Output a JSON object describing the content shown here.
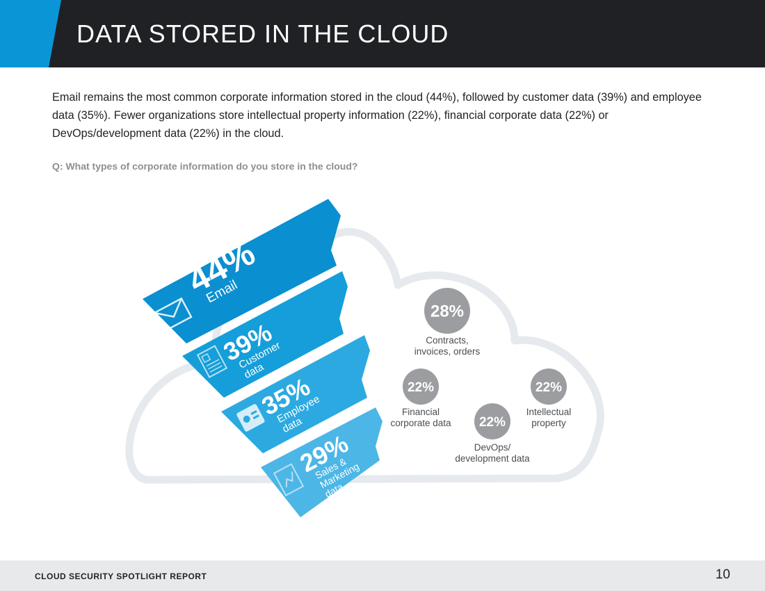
{
  "header": {
    "title": "DATA STORED IN THE CLOUD",
    "accent_color": "#0a96d6",
    "bar_color": "#1f2124"
  },
  "intro": "Email remains the most common corporate information stored in the cloud (44%), followed by customer data (39%) and employee data (35%).  Fewer organizations store intellectual property information (22%), financial corporate data (22%) or DevOps/development data (22%) in the cloud.",
  "question": "Q: What types of corporate information do you store in the cloud?",
  "footer": {
    "label": "CLOUD SECURITY SPOTLIGHT REPORT",
    "page_number": "10"
  },
  "chart_data": {
    "type": "bar",
    "title": "",
    "ribbons": [
      {
        "value_label": "44%",
        "value": 44,
        "label_lines": [
          "Email"
        ],
        "icon": "envelope-icon",
        "color": "#0a8fd0"
      },
      {
        "value_label": "39%",
        "value": 39,
        "label_lines": [
          "Customer",
          "data"
        ],
        "icon": "document-icon",
        "color": "#159ed9"
      },
      {
        "value_label": "35%",
        "value": 35,
        "label_lines": [
          "Employee",
          "data"
        ],
        "icon": "id-badge-icon",
        "color": "#2ca9e1"
      },
      {
        "value_label": "29%",
        "value": 29,
        "label_lines": [
          "Sales &",
          "Marketing",
          "data"
        ],
        "icon": "chart-document-icon",
        "color": "#4cb6e6"
      }
    ],
    "circles": [
      {
        "value_label": "28%",
        "value": 28,
        "label_lines": [
          "Contracts,",
          "invoices, orders"
        ]
      },
      {
        "value_label": "22%",
        "value": 22,
        "label_lines": [
          "Financial",
          "corporate data"
        ]
      },
      {
        "value_label": "22%",
        "value": 22,
        "label_lines": [
          "Intellectual",
          "property"
        ]
      },
      {
        "value_label": "22%",
        "value": 22,
        "label_lines": [
          "DevOps/",
          "development data"
        ]
      }
    ],
    "circle_color": "#9b9da0",
    "cloud_outline_color": "#e6eaee"
  }
}
